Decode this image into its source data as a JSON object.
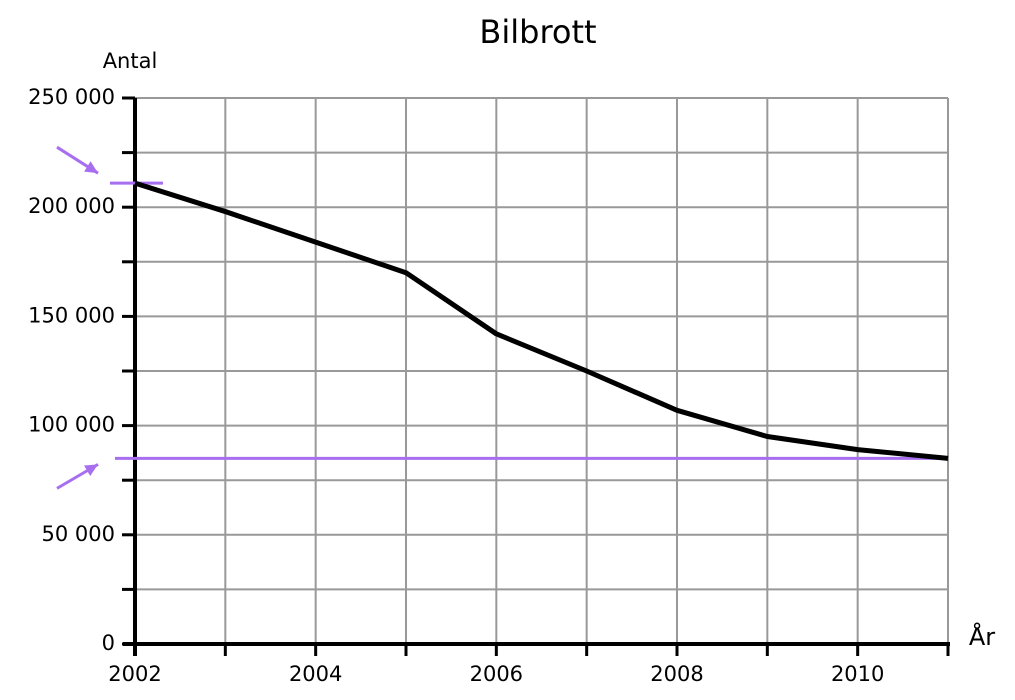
{
  "chart_data": {
    "type": "line",
    "title": "Bilbrott",
    "y_label": "Antal",
    "x_label": "År",
    "x": [
      2002,
      2003,
      2004,
      2005,
      2006,
      2007,
      2008,
      2009,
      2010,
      2011
    ],
    "values": [
      211000,
      198000,
      184000,
      170000,
      142000,
      125000,
      107000,
      95000,
      89000,
      85000
    ],
    "color": "#000000",
    "xlim": [
      2002,
      2011
    ],
    "xticks": [
      2002,
      2004,
      2006,
      2008,
      2010
    ],
    "x_minor_ticks": [
      2003,
      2005,
      2007,
      2009,
      2011
    ],
    "ylim": [
      0,
      250000
    ],
    "yticks": [
      {
        "value": 0,
        "label": "0"
      },
      {
        "value": 50000,
        "label": "50 000"
      },
      {
        "value": 100000,
        "label": "100 000"
      },
      {
        "value": 150000,
        "label": "150 000"
      },
      {
        "value": 200000,
        "label": "200 000"
      },
      {
        "value": 250000,
        "label": "250 000"
      }
    ],
    "y_minor_ticks": [
      25000,
      75000,
      125000,
      175000,
      225000
    ],
    "grid": true,
    "reference_lines": [
      {
        "value": 211000,
        "span": "short",
        "color": "#a86ef0"
      },
      {
        "value": 85000,
        "span": "full",
        "color": "#a86ef0"
      }
    ]
  }
}
